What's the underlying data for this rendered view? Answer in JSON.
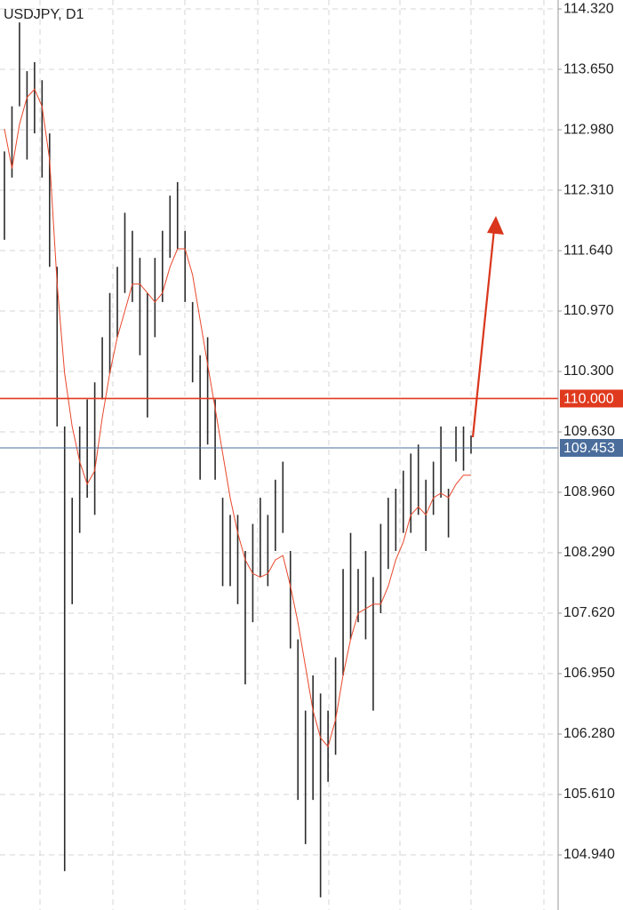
{
  "chart_data": {
    "type": "range",
    "title": "USDJPY, D1",
    "ylim": [
      104.329,
      114.419
    ],
    "yticks": [
      {
        "value": 114.32,
        "label": "114.320"
      },
      {
        "value": 113.65,
        "label": "113.650"
      },
      {
        "value": 112.98,
        "label": "112.980"
      },
      {
        "value": 112.31,
        "label": "112.310"
      },
      {
        "value": 111.64,
        "label": "111.640"
      },
      {
        "value": 110.97,
        "label": "110.970"
      },
      {
        "value": 110.3,
        "label": "110.300"
      },
      {
        "value": 109.63,
        "label": "109.630"
      },
      {
        "value": 108.96,
        "label": "108.960"
      },
      {
        "value": 108.29,
        "label": "108.290"
      },
      {
        "value": 107.62,
        "label": "107.620"
      },
      {
        "value": 106.95,
        "label": "106.950"
      },
      {
        "value": 106.28,
        "label": "106.280"
      },
      {
        "value": 105.61,
        "label": "105.610"
      },
      {
        "value": 104.94,
        "label": "104.940"
      }
    ],
    "grid": true,
    "bar_color": "#2b2b2b",
    "ma_color": "#e8472b",
    "high": [
      112.74,
      113.24,
      114.17,
      113.63,
      113.73,
      113.53,
      112.94,
      111.46,
      109.69,
      108.9,
      109.69,
      109.99,
      110.18,
      110.68,
      111.17,
      111.46,
      112.06,
      111.86,
      111.56,
      111.17,
      111.56,
      111.86,
      112.25,
      112.4,
      111.86,
      111.07,
      110.48,
      110.68,
      109.99,
      108.9,
      108.71,
      108.71,
      108.31,
      108.61,
      108.9,
      108.71,
      109.1,
      109.3,
      108.31,
      107.33,
      106.54,
      106.93,
      106.73,
      106.54,
      107.13,
      108.11,
      108.51,
      108.11,
      108.31,
      108.02,
      108.61,
      108.9,
      109.0,
      109.2,
      109.39,
      109.49,
      109.1,
      109.3,
      109.69,
      109.0,
      109.69,
      109.69,
      109.59
    ],
    "low": [
      111.76,
      112.45,
      113.24,
      112.65,
      112.94,
      112.45,
      111.46,
      109.69,
      104.76,
      107.72,
      108.51,
      108.9,
      108.71,
      109.99,
      110.28,
      110.68,
      111.17,
      111.07,
      110.48,
      109.79,
      110.68,
      111.07,
      111.56,
      111.66,
      111.07,
      110.18,
      109.1,
      109.49,
      109.1,
      107.92,
      107.92,
      107.72,
      106.83,
      107.52,
      108.02,
      107.92,
      108.31,
      108.51,
      107.23,
      105.55,
      105.06,
      105.55,
      104.47,
      105.75,
      106.05,
      106.93,
      107.33,
      107.52,
      107.33,
      106.54,
      107.62,
      108.11,
      108.31,
      108.51,
      108.51,
      108.71,
      108.31,
      108.71,
      108.9,
      108.46,
      109.3,
      109.2,
      109.39
    ],
    "ma": [
      112.99,
      112.55,
      113.04,
      113.34,
      113.43,
      113.24,
      112.65,
      111.27,
      110.28,
      109.69,
      109.3,
      109.05,
      109.2,
      109.79,
      110.28,
      110.68,
      110.97,
      111.27,
      111.27,
      111.17,
      111.07,
      111.17,
      111.46,
      111.66,
      111.66,
      111.37,
      110.87,
      110.38,
      109.89,
      109.39,
      108.9,
      108.51,
      108.21,
      108.06,
      108.02,
      108.06,
      108.21,
      108.26,
      107.92,
      107.52,
      107.03,
      106.54,
      106.24,
      106.14,
      106.44,
      106.93,
      107.33,
      107.62,
      107.67,
      107.72,
      107.72,
      107.92,
      108.21,
      108.41,
      108.71,
      108.8,
      108.71,
      108.9,
      108.95,
      108.9,
      109.05,
      109.15,
      109.15
    ],
    "levels": [
      {
        "value": 110,
        "label": "110.000",
        "color": "#e03a1e"
      },
      {
        "value": 109.453,
        "label": "109.453",
        "color": "#4a6d9c"
      }
    ]
  }
}
